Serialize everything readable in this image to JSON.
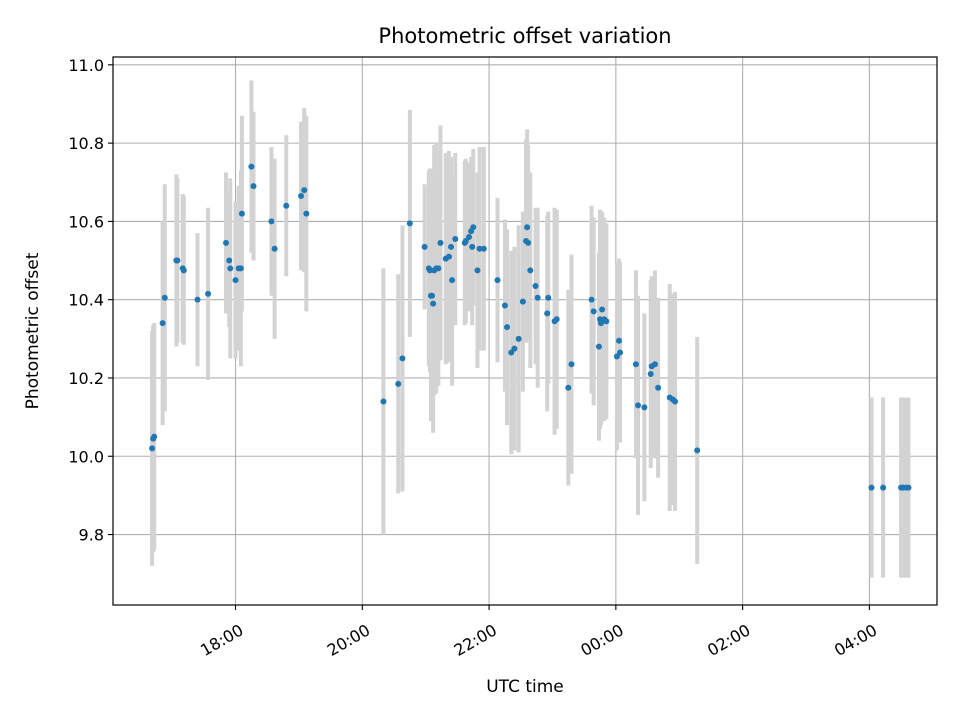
{
  "chart_data": {
    "type": "scatter",
    "title": "Photometric offset variation",
    "xlabel": "UTC time",
    "ylabel": "Photometric offset",
    "x_unit": "UTC time of day (24h clock, axis spans two calendar days)",
    "xlim": [
      "16:04",
      "05:04"
    ],
    "ylim": [
      9.62,
      11.02
    ],
    "y_ticks": [
      9.8,
      10.0,
      10.2,
      10.4,
      10.6,
      10.8,
      11.0
    ],
    "x_ticks": [
      "18:00",
      "20:00",
      "22:00",
      "00:00",
      "02:00",
      "04:00"
    ],
    "grid": true,
    "legend": "none",
    "colors": {
      "point": "#1f77b4",
      "errorbar": "#d3d3d3",
      "grid": "#b0b0b0"
    },
    "points": [
      {
        "x": "16:41",
        "y": 10.02,
        "err": 0.3
      },
      {
        "x": "16:42",
        "y": 10.045,
        "err": 0.29
      },
      {
        "x": "16:43",
        "y": 10.05,
        "err": 0.29
      },
      {
        "x": "16:51",
        "y": 10.34,
        "err": 0.26
      },
      {
        "x": "16:53",
        "y": 10.405,
        "err": 0.29
      },
      {
        "x": "17:04",
        "y": 10.5,
        "err": 0.22
      },
      {
        "x": "17:05",
        "y": 10.5,
        "err": 0.21
      },
      {
        "x": "17:10",
        "y": 10.48,
        "err": 0.19
      },
      {
        "x": "17:11",
        "y": 10.475,
        "err": 0.19
      },
      {
        "x": "17:24",
        "y": 10.4,
        "err": 0.17
      },
      {
        "x": "17:34",
        "y": 10.415,
        "err": 0.22
      },
      {
        "x": "17:51",
        "y": 10.545,
        "err": 0.18
      },
      {
        "x": "17:54",
        "y": 10.5,
        "err": 0.17
      },
      {
        "x": "17:55",
        "y": 10.48,
        "err": 0.23
      },
      {
        "x": "18:00",
        "y": 10.45,
        "err": 0.2
      },
      {
        "x": "18:03",
        "y": 10.48,
        "err": 0.21
      },
      {
        "x": "18:05",
        "y": 10.48,
        "err": 0.25
      },
      {
        "x": "18:06",
        "y": 10.62,
        "err": 0.25
      },
      {
        "x": "18:15",
        "y": 10.74,
        "err": 0.22
      },
      {
        "x": "18:17",
        "y": 10.69,
        "err": 0.19
      },
      {
        "x": "18:34",
        "y": 10.6,
        "err": 0.19
      },
      {
        "x": "18:37",
        "y": 10.53,
        "err": 0.23
      },
      {
        "x": "18:48",
        "y": 10.64,
        "err": 0.18
      },
      {
        "x": "19:02",
        "y": 10.665,
        "err": 0.19
      },
      {
        "x": "19:05",
        "y": 10.68,
        "err": 0.21
      },
      {
        "x": "19:07",
        "y": 10.62,
        "err": 0.25
      },
      {
        "x": "20:20",
        "y": 10.14,
        "err": 0.34
      },
      {
        "x": "20:34",
        "y": 10.185,
        "err": 0.28
      },
      {
        "x": "20:38",
        "y": 10.25,
        "err": 0.34
      },
      {
        "x": "20:45",
        "y": 10.595,
        "err": 0.29
      },
      {
        "x": "20:59",
        "y": 10.535,
        "err": 0.16
      },
      {
        "x": "21:03",
        "y": 10.48,
        "err": 0.25
      },
      {
        "x": "21:04",
        "y": 10.475,
        "err": 0.26
      },
      {
        "x": "21:05",
        "y": 10.41,
        "err": 0.32
      },
      {
        "x": "21:06",
        "y": 10.41,
        "err": 0.3
      },
      {
        "x": "21:07",
        "y": 10.39,
        "err": 0.33
      },
      {
        "x": "21:08",
        "y": 10.475,
        "err": 0.32
      },
      {
        "x": "21:10",
        "y": 10.48,
        "err": 0.32
      },
      {
        "x": "21:12",
        "y": 10.48,
        "err": 0.3
      },
      {
        "x": "21:14",
        "y": 10.545,
        "err": 0.3
      },
      {
        "x": "21:19",
        "y": 10.505,
        "err": 0.27
      },
      {
        "x": "21:22",
        "y": 10.51,
        "err": 0.27
      },
      {
        "x": "21:24",
        "y": 10.535,
        "err": 0.23
      },
      {
        "x": "21:25",
        "y": 10.45,
        "err": 0.27
      },
      {
        "x": "21:28",
        "y": 10.555,
        "err": 0.22
      },
      {
        "x": "21:37",
        "y": 10.545,
        "err": 0.21
      },
      {
        "x": "21:38",
        "y": 10.55,
        "err": 0.21
      },
      {
        "x": "21:41",
        "y": 10.56,
        "err": 0.19
      },
      {
        "x": "21:43",
        "y": 10.575,
        "err": 0.19
      },
      {
        "x": "21:44",
        "y": 10.535,
        "err": 0.2
      },
      {
        "x": "21:45",
        "y": 10.585,
        "err": 0.2
      },
      {
        "x": "21:49",
        "y": 10.475,
        "err": 0.25
      },
      {
        "x": "21:51",
        "y": 10.53,
        "err": 0.26
      },
      {
        "x": "21:55",
        "y": 10.53,
        "err": 0.26
      },
      {
        "x": "22:08",
        "y": 10.45,
        "err": 0.21
      },
      {
        "x": "22:15",
        "y": 10.385,
        "err": 0.22
      },
      {
        "x": "22:17",
        "y": 10.33,
        "err": 0.25
      },
      {
        "x": "22:21",
        "y": 10.265,
        "err": 0.26
      },
      {
        "x": "22:24",
        "y": 10.275,
        "err": 0.26
      },
      {
        "x": "22:28",
        "y": 10.3,
        "err": 0.29
      },
      {
        "x": "22:32",
        "y": 10.395,
        "err": 0.23
      },
      {
        "x": "22:35",
        "y": 10.55,
        "err": 0.26
      },
      {
        "x": "22:36",
        "y": 10.585,
        "err": 0.25
      },
      {
        "x": "22:37",
        "y": 10.545,
        "err": 0.25
      },
      {
        "x": "22:39",
        "y": 10.475,
        "err": 0.25
      },
      {
        "x": "22:44",
        "y": 10.435,
        "err": 0.2
      },
      {
        "x": "22:46",
        "y": 10.405,
        "err": 0.23
      },
      {
        "x": "22:55",
        "y": 10.365,
        "err": 0.25
      },
      {
        "x": "22:56",
        "y": 10.405,
        "err": 0.22
      },
      {
        "x": "23:02",
        "y": 10.345,
        "err": 0.29
      },
      {
        "x": "23:04",
        "y": 10.35,
        "err": 0.28
      },
      {
        "x": "23:15",
        "y": 10.175,
        "err": 0.25
      },
      {
        "x": "23:18",
        "y": 10.235,
        "err": 0.28
      },
      {
        "x": "23:37",
        "y": 10.4,
        "err": 0.24
      },
      {
        "x": "23:39",
        "y": 10.37,
        "err": 0.24
      },
      {
        "x": "23:44",
        "y": 10.28,
        "err": 0.24
      },
      {
        "x": "23:45",
        "y": 10.35,
        "err": 0.28
      },
      {
        "x": "23:46",
        "y": 10.34,
        "err": 0.26
      },
      {
        "x": "23:47",
        "y": 10.375,
        "err": 0.25
      },
      {
        "x": "23:49",
        "y": 10.35,
        "err": 0.26
      },
      {
        "x": "23:51",
        "y": 10.345,
        "err": 0.25
      },
      {
        "x": "00:01",
        "y": 10.255,
        "err": 0.24
      },
      {
        "x": "00:03",
        "y": 10.295,
        "err": 0.21
      },
      {
        "x": "00:04",
        "y": 10.265,
        "err": 0.23
      },
      {
        "x": "00:19",
        "y": 10.235,
        "err": 0.24
      },
      {
        "x": "00:21",
        "y": 10.13,
        "err": 0.28
      },
      {
        "x": "00:27",
        "y": 10.125,
        "err": 0.24
      },
      {
        "x": "00:33",
        "y": 10.21,
        "err": 0.24
      },
      {
        "x": "00:34",
        "y": 10.23,
        "err": 0.23
      },
      {
        "x": "00:37",
        "y": 10.235,
        "err": 0.24
      },
      {
        "x": "00:40",
        "y": 10.175,
        "err": 0.23
      },
      {
        "x": "00:51",
        "y": 10.15,
        "err": 0.29
      },
      {
        "x": "00:54",
        "y": 10.145,
        "err": 0.27
      },
      {
        "x": "00:56",
        "y": 10.14,
        "err": 0.28
      },
      {
        "x": "01:17",
        "y": 10.015,
        "err": 0.29
      },
      {
        "x": "04:02",
        "y": 9.92,
        "err": 0.23
      },
      {
        "x": "04:13",
        "y": 9.92,
        "err": 0.23
      },
      {
        "x": "04:30",
        "y": 9.92,
        "err": 0.23
      },
      {
        "x": "04:32",
        "y": 9.92,
        "err": 0.23
      },
      {
        "x": "04:35",
        "y": 9.92,
        "err": 0.23
      },
      {
        "x": "04:37",
        "y": 9.92,
        "err": 0.23
      }
    ]
  }
}
